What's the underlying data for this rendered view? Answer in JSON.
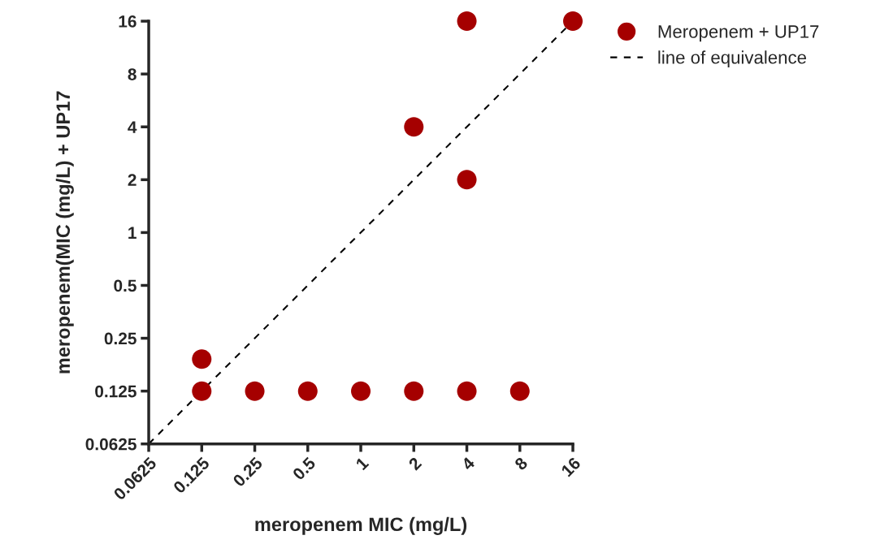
{
  "chart_data": {
    "type": "scatter",
    "xlabel": "meropenem MIC (mg/L)",
    "ylabel": "meropenem(MIC (mg/L) + UP17",
    "series": [
      {
        "name": "Meropenem + UP17",
        "color": "#a50000",
        "marker": "circle",
        "x": [
          0.125,
          0.125,
          0.25,
          0.5,
          1,
          2,
          4,
          8,
          2,
          4,
          4,
          16
        ],
        "values": [
          0.19,
          0.125,
          0.125,
          0.125,
          0.125,
          0.125,
          0.125,
          0.125,
          4,
          16,
          2,
          16
        ]
      },
      {
        "name": "line of equivalence",
        "type": "line",
        "color": "#000000",
        "line_style": "dashed",
        "x": [
          0.0625,
          16
        ],
        "values": [
          0.0625,
          16
        ]
      }
    ],
    "log": "xy",
    "xlim": [
      0.0625,
      16
    ],
    "ylim": [
      0.0625,
      16
    ],
    "xticks": [
      0.0625,
      0.125,
      0.25,
      0.5,
      1,
      2,
      4,
      8,
      16
    ],
    "yticks": [
      0.0625,
      0.125,
      0.25,
      0.5,
      1,
      2,
      4,
      8,
      16
    ],
    "grid": false,
    "legend": "top right"
  }
}
